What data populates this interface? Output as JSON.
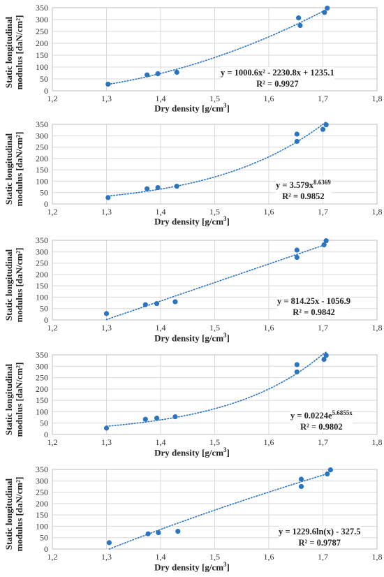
{
  "chart_data": [
    {
      "type": "scatter",
      "xlabel_main": "Dry density [g/cm",
      "xlabel_unit_exp": "3",
      "xlabel_close": "]",
      "ylabel_line1": "Static longitudinal",
      "ylabel_line2": "modulus [daN/cm²]",
      "xlim": [
        1.2,
        1.8
      ],
      "ylim": [
        0,
        350
      ],
      "xticks": [
        "1,2",
        "1,3",
        "1,4",
        "1,5",
        "1,6",
        "1,7",
        "1,8"
      ],
      "yticks": [
        "0",
        "50",
        "100",
        "150",
        "200",
        "250",
        "300",
        "350"
      ],
      "x": [
        1.303,
        1.375,
        1.395,
        1.43,
        1.655,
        1.658,
        1.703,
        1.708
      ],
      "y": [
        28,
        67,
        72,
        78,
        307,
        275,
        330,
        348
      ],
      "trendline": "polynomial",
      "equation": "y = 1000.6x² - 2230.8x + 1235.1",
      "r2": "R² = 0.9927",
      "point_color": "#2b74c0",
      "grid": true
    },
    {
      "type": "scatter",
      "xlabel_main": "Dry density [g/cm",
      "xlabel_unit_exp": "3",
      "xlabel_close": "]",
      "ylabel_line1": "Static longitudinal",
      "ylabel_line2": "modulus [daN/cm²]",
      "xlim": [
        1.2,
        1.8
      ],
      "ylim": [
        0,
        350
      ],
      "xticks": [
        "1,2",
        "1,3",
        "1,4",
        "1,5",
        "1,6",
        "1,7",
        "1,8"
      ],
      "yticks": [
        "0",
        "50",
        "100",
        "150",
        "200",
        "250",
        "300",
        "350"
      ],
      "x": [
        1.303,
        1.375,
        1.395,
        1.43,
        1.652,
        1.652,
        1.7,
        1.706
      ],
      "y": [
        28,
        67,
        72,
        78,
        307,
        275,
        328,
        348
      ],
      "trendline": "power",
      "equation": "y = 3.579x",
      "equation_exp": "8.6369",
      "r2": "R² = 0.9852",
      "point_color": "#2b74c0",
      "grid": true
    },
    {
      "type": "scatter",
      "xlabel_main": "Dry density [g/cm",
      "xlabel_unit_exp": "3",
      "xlabel_close": "]",
      "ylabel_line1": "Static longitudinal",
      "ylabel_line2": "modulus [daN/cm²]",
      "xlim": [
        1.2,
        1.8
      ],
      "ylim": [
        0,
        350
      ],
      "xticks": [
        "1,2",
        "1,3",
        "1,4",
        "1,5",
        "1,6",
        "1,7",
        "1,8"
      ],
      "yticks": [
        "0",
        "50",
        "100",
        "150",
        "200",
        "250",
        "300",
        "350"
      ],
      "x": [
        1.3,
        1.372,
        1.393,
        1.427,
        1.652,
        1.652,
        1.702,
        1.706
      ],
      "y": [
        28,
        67,
        72,
        80,
        307,
        275,
        330,
        348
      ],
      "trendline": "linear",
      "equation": "y = 814.25x - 1056.9",
      "r2": "R² = 0.9842",
      "point_color": "#2b74c0",
      "grid": true
    },
    {
      "type": "scatter",
      "xlabel_main": "Dry density [g/cm",
      "xlabel_unit_exp": "3",
      "xlabel_close": "]",
      "ylabel_line1": "Static longitudinal",
      "ylabel_line2": "modulus [daN/cm²]",
      "xlim": [
        1.2,
        1.8
      ],
      "ylim": [
        0,
        350
      ],
      "xticks": [
        "1,2",
        "1,3",
        "1,4",
        "1,5",
        "1,6",
        "1,7",
        "1,8"
      ],
      "yticks": [
        "0",
        "50",
        "100",
        "150",
        "200",
        "250",
        "300",
        "350"
      ],
      "x": [
        1.3,
        1.372,
        1.393,
        1.427,
        1.652,
        1.652,
        1.702,
        1.706
      ],
      "y": [
        28,
        67,
        72,
        78,
        307,
        275,
        330,
        348
      ],
      "trendline": "exponential",
      "equation": "y = 0.0224e",
      "equation_exp": "5.6855x",
      "r2": "R² = 0.9802",
      "point_color": "#2b74c0",
      "grid": true
    },
    {
      "type": "scatter",
      "xlabel_main": "Dry density [g/cm",
      "xlabel_unit_exp": "3",
      "xlabel_close": "]",
      "ylabel_line1": "Static longitudinal",
      "ylabel_line2": "modulus [daN/cm²]",
      "xlim": [
        1.2,
        1.8
      ],
      "ylim": [
        0,
        350
      ],
      "xticks": [
        "1,2",
        "1,3",
        "1,4",
        "1,5",
        "1,6",
        "1,7",
        "1,8"
      ],
      "yticks": [
        "0",
        "50",
        "100",
        "150",
        "200",
        "250",
        "300",
        "350"
      ],
      "x": [
        1.305,
        1.377,
        1.396,
        1.432,
        1.66,
        1.66,
        1.708,
        1.714
      ],
      "y": [
        28,
        67,
        72,
        78,
        307,
        275,
        330,
        348
      ],
      "trendline": "logarithmic",
      "equation": "y = 1229.6ln(x) - 327.5",
      "r2": "R² = 0.9787",
      "point_color": "#2b74c0",
      "grid": true
    }
  ]
}
